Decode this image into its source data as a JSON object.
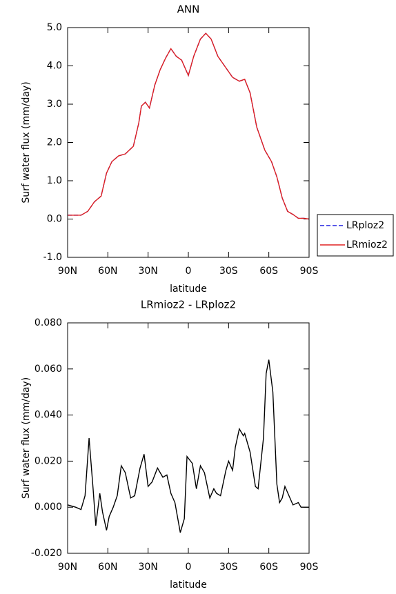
{
  "chart_data": [
    {
      "type": "line",
      "title": "ANN",
      "xlabel": "latitude",
      "ylabel": "Surf water flux (mm/day)",
      "x": [
        90,
        80,
        75,
        70,
        65,
        61,
        57,
        52,
        47,
        41,
        37,
        35,
        32,
        29,
        25,
        21,
        17,
        13,
        9,
        5,
        0,
        -4,
        -9,
        -13,
        -17,
        -22,
        -27,
        -33,
        -38,
        -42,
        -46,
        -51,
        -57,
        -62,
        -66,
        -70,
        -74,
        -78,
        -82,
        -86,
        -90
      ],
      "series": [
        {
          "name": "LRploz2",
          "color": "#2020e0",
          "line_style": "dashed",
          "values": [
            0.1,
            0.1,
            0.2,
            0.45,
            0.6,
            1.2,
            1.5,
            1.65,
            1.7,
            1.9,
            2.5,
            2.95,
            3.05,
            2.9,
            3.5,
            3.9,
            4.2,
            4.45,
            4.25,
            4.15,
            3.75,
            4.25,
            4.7,
            4.85,
            4.7,
            4.25,
            4.0,
            3.7,
            3.6,
            3.65,
            3.3,
            2.4,
            1.8,
            1.5,
            1.1,
            0.55,
            0.2,
            0.12,
            0.02,
            0.02,
            0.0
          ]
        },
        {
          "name": "LRmioz2",
          "color": "#e02020",
          "line_style": "solid",
          "values": [
            0.1,
            0.1,
            0.2,
            0.45,
            0.6,
            1.2,
            1.5,
            1.65,
            1.7,
            1.9,
            2.5,
            2.95,
            3.05,
            2.9,
            3.5,
            3.9,
            4.2,
            4.45,
            4.25,
            4.15,
            3.75,
            4.25,
            4.7,
            4.85,
            4.7,
            4.25,
            4.0,
            3.7,
            3.6,
            3.65,
            3.3,
            2.4,
            1.8,
            1.5,
            1.1,
            0.55,
            0.2,
            0.12,
            0.02,
            0.02,
            0.0
          ]
        }
      ],
      "xlim": [
        90,
        -90
      ],
      "xticks": [
        {
          "value": 90,
          "label": "90N"
        },
        {
          "value": 60,
          "label": "60N"
        },
        {
          "value": 30,
          "label": "30N"
        },
        0,
        {
          "value": -30,
          "label": "30S"
        },
        {
          "value": -60,
          "label": "60S"
        },
        {
          "value": -90,
          "label": "90S"
        }
      ],
      "ylim": [
        -1.0,
        5.0
      ],
      "yticks": [
        {
          "value": -1.0,
          "label": "-1.0"
        },
        {
          "value": 0.0,
          "label": "0.0"
        },
        {
          "value": 1.0,
          "label": "1.0"
        },
        {
          "value": 2.0,
          "label": "2.0"
        },
        {
          "value": 3.0,
          "label": "3.0"
        },
        {
          "value": 4.0,
          "label": "4.0"
        },
        {
          "value": 5.0,
          "label": "5.0"
        }
      ],
      "legend": "right"
    },
    {
      "type": "line",
      "title": "LRmioz2 - LRploz2",
      "xlabel": "latitude",
      "ylabel": "Surf water flux (mm/day)",
      "x": [
        90,
        84,
        80,
        77,
        74,
        71,
        69,
        66,
        64,
        61,
        59,
        56,
        53,
        50,
        47,
        43,
        40,
        36,
        33,
        30,
        27,
        23,
        19,
        16,
        13,
        10,
        6,
        3,
        1,
        -3,
        -6,
        -9,
        -12,
        -16,
        -19,
        -21,
        -24,
        -28,
        -30,
        -33,
        -35,
        -38,
        -41,
        -42,
        -46,
        -50,
        -52,
        -56,
        -58,
        -60,
        -63,
        -66,
        -68,
        -70,
        -72,
        -75,
        -78,
        -82,
        -84,
        -90
      ],
      "values": [
        0.001,
        0.0,
        -0.001,
        0.005,
        0.03,
        0.008,
        -0.008,
        0.006,
        -0.002,
        -0.01,
        -0.004,
        0.0,
        0.005,
        0.018,
        0.015,
        0.004,
        0.005,
        0.017,
        0.023,
        0.009,
        0.011,
        0.017,
        0.013,
        0.014,
        0.006,
        0.002,
        -0.011,
        -0.005,
        0.022,
        0.019,
        0.008,
        0.018,
        0.015,
        0.004,
        0.008,
        0.006,
        0.005,
        0.016,
        0.02,
        0.016,
        0.026,
        0.034,
        0.031,
        0.032,
        0.024,
        0.009,
        0.008,
        0.03,
        0.058,
        0.064,
        0.05,
        0.01,
        0.002,
        0.004,
        0.009,
        0.005,
        0.001,
        0.002,
        0.0,
        0.0
      ],
      "color": "#000000",
      "xlim": [
        90,
        -90
      ],
      "xticks": [
        {
          "value": 90,
          "label": "90N"
        },
        {
          "value": 60,
          "label": "60N"
        },
        {
          "value": 30,
          "label": "30N"
        },
        0,
        {
          "value": -30,
          "label": "30S"
        },
        {
          "value": -60,
          "label": "60S"
        },
        {
          "value": -90,
          "label": "90S"
        }
      ],
      "ylim": [
        -0.02,
        0.08
      ],
      "yticks": [
        {
          "value": -0.02,
          "label": "-0.020"
        },
        {
          "value": 0.0,
          "label": "0.000"
        },
        {
          "value": 0.02,
          "label": "0.020"
        },
        {
          "value": 0.04,
          "label": "0.040"
        },
        {
          "value": 0.06,
          "label": "0.060"
        },
        {
          "value": 0.08,
          "label": "0.080"
        }
      ]
    }
  ]
}
